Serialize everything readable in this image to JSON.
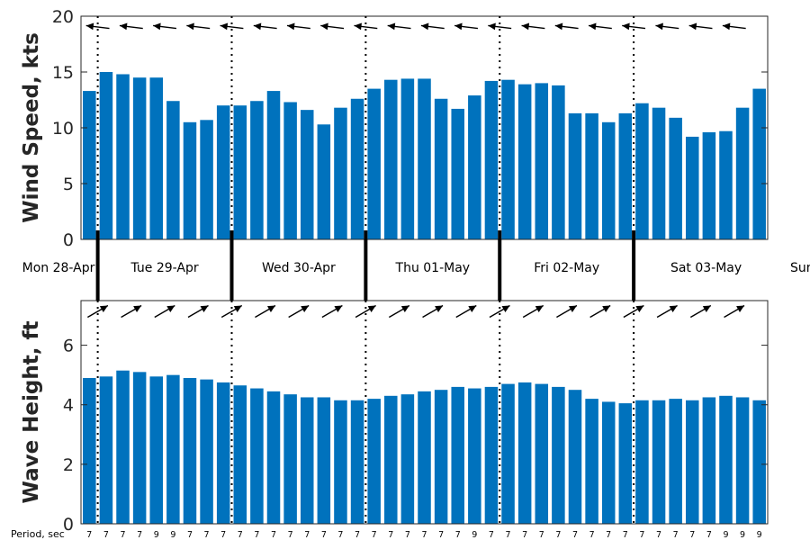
{
  "chart_data": [
    {
      "type": "bar",
      "ylabel": "Wind Speed, kts",
      "ylim": [
        0,
        20
      ],
      "yticks": [
        0,
        5,
        10,
        15,
        20
      ],
      "bar_color": "#0072BD",
      "values": [
        13.3,
        15.0,
        14.8,
        14.5,
        14.5,
        12.4,
        10.5,
        10.7,
        12.0,
        12.0,
        12.4,
        13.3,
        12.3,
        11.6,
        10.3,
        11.8,
        12.6,
        13.5,
        14.3,
        14.4,
        14.4,
        12.6,
        11.7,
        12.9,
        14.2,
        14.3,
        13.9,
        14.0,
        13.8,
        11.3,
        11.3,
        10.5,
        11.3,
        12.2,
        11.8,
        10.9,
        9.2,
        9.6,
        9.7,
        11.8,
        13.5
      ],
      "arrow_direction": "from east (pointing left)"
    },
    {
      "type": "bar",
      "ylabel": "Wave Height, ft",
      "ylim": [
        0,
        7.5
      ],
      "yticks": [
        0,
        2,
        4,
        6
      ],
      "bar_color": "#0072BD",
      "values": [
        4.9,
        4.95,
        5.15,
        5.1,
        4.95,
        5.0,
        4.9,
        4.85,
        4.75,
        4.65,
        4.55,
        4.45,
        4.35,
        4.25,
        4.25,
        4.15,
        4.15,
        4.2,
        4.3,
        4.35,
        4.45,
        4.5,
        4.6,
        4.55,
        4.6,
        4.7,
        4.75,
        4.7,
        4.6,
        4.5,
        4.2,
        4.1,
        4.05,
        4.15,
        4.15,
        4.2,
        4.15,
        4.25,
        4.3,
        4.25,
        4.15
      ],
      "arrow_direction": "toward northeast"
    }
  ],
  "days": [
    "Mon 28-Apr",
    "Tue 29-Apr",
    "Wed 30-Apr",
    "Thu 01-May",
    "Fri 02-May",
    "Sat 03-May",
    "Sun"
  ],
  "period_label": "Period, sec",
  "periods": [
    "7",
    "7",
    "7",
    "7",
    "9",
    "9",
    "7",
    "7",
    "7",
    "7",
    "7",
    "7",
    "7",
    "7",
    "7",
    "7",
    "7",
    "7",
    "7",
    "7",
    "7",
    "7",
    "7",
    "9",
    "7",
    "7",
    "7",
    "7",
    "7",
    "7",
    "7",
    "7",
    "7",
    "7",
    "7",
    "7",
    "7",
    "7",
    "9",
    "9",
    "9"
  ]
}
